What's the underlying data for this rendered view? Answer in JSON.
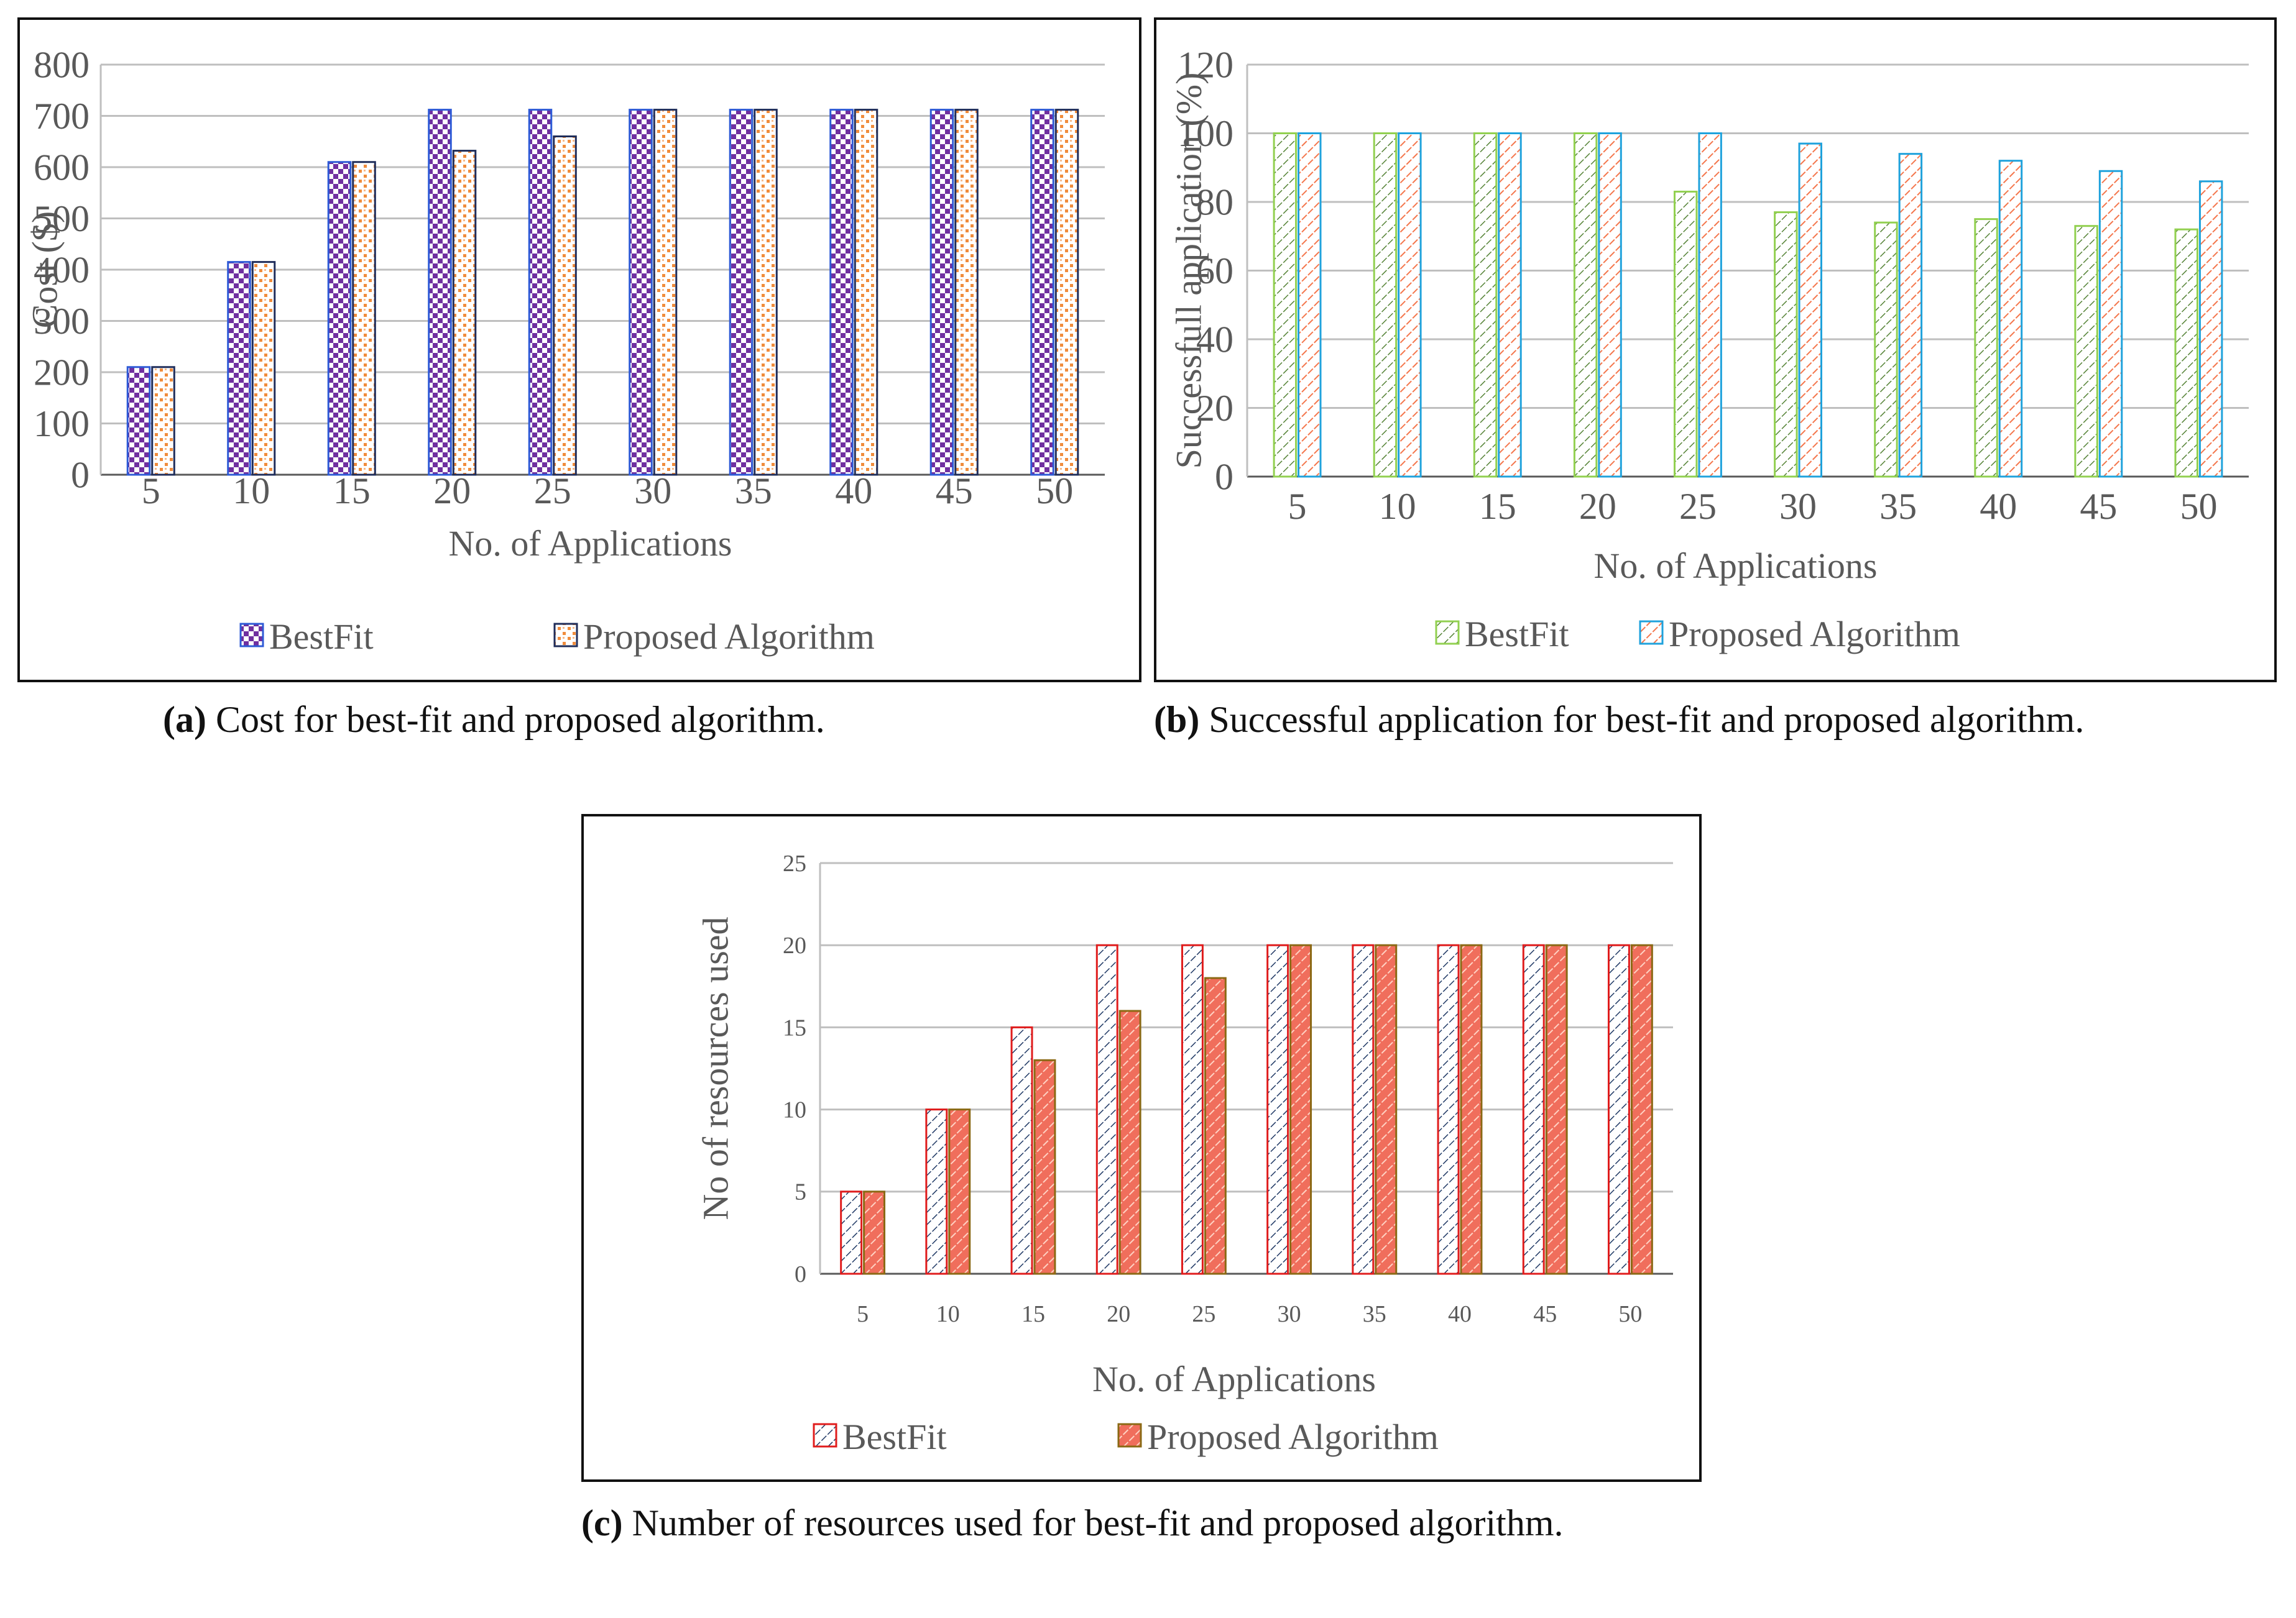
{
  "colors": {
    "grid": "#bfbfbf",
    "axis": "#595959",
    "text": "#595959",
    "a_bestfit_pattern": "#7030a0",
    "a_bestfit_bg": "#ffffff",
    "a_bestfit_border": "#2e5ad6",
    "a_proposed_pattern": "#f08c3c",
    "a_proposed_bg": "#ffffff",
    "a_proposed_border": "#1f2d5a",
    "b_bestfit_pattern": "#548235",
    "b_bestfit_bg": "#ffffff",
    "b_bestfit_border": "#92d050",
    "b_proposed_pattern": "#f4764c",
    "b_proposed_bg": "#ffffff",
    "b_proposed_border": "#1fa2dc",
    "c_bestfit_pattern": "#1f3864",
    "c_bestfit_bg": "#ffffff",
    "c_bestfit_border": "#e01c1c",
    "c_proposed_pattern": "#ffd2c3",
    "c_proposed_bg": "#f06e5c",
    "c_proposed_border": "#8b6914"
  },
  "chart_data": [
    {
      "id": "a",
      "type": "bar",
      "categories": [
        "5",
        "10",
        "15",
        "20",
        "25",
        "30",
        "35",
        "40",
        "45",
        "50"
      ],
      "series": [
        {
          "name": "BestFit",
          "values": [
            210,
            415,
            610,
            712,
            712,
            712,
            712,
            712,
            712,
            712
          ]
        },
        {
          "name": "Proposed Algorithm",
          "values": [
            210,
            415,
            610,
            632,
            660,
            712,
            712,
            712,
            712,
            712
          ]
        }
      ],
      "xlabel": "No. of Applications",
      "ylabel": "Cost ($)",
      "ylim": [
        0,
        800
      ],
      "yticks": [
        "0",
        "100",
        "200",
        "300",
        "400",
        "500",
        "600",
        "700",
        "800"
      ],
      "legend": "bottom",
      "grid": true
    },
    {
      "id": "b",
      "type": "bar",
      "categories": [
        "5",
        "10",
        "15",
        "20",
        "25",
        "30",
        "35",
        "40",
        "45",
        "50"
      ],
      "series": [
        {
          "name": "BestFit",
          "values": [
            100,
            100,
            100,
            100,
            83,
            77,
            74,
            75,
            73,
            72
          ]
        },
        {
          "name": "Proposed Algorithm",
          "values": [
            100,
            100,
            100,
            100,
            100,
            97,
            94,
            92,
            89,
            86
          ]
        }
      ],
      "xlabel": "No. of Applications",
      "ylabel": "Successfull application (%)",
      "ylim": [
        0,
        120
      ],
      "yticks": [
        "0",
        "20",
        "40",
        "60",
        "80",
        "100",
        "120"
      ],
      "legend": "bottom",
      "grid": true
    },
    {
      "id": "c",
      "type": "bar",
      "categories": [
        "5",
        "10",
        "15",
        "20",
        "25",
        "30",
        "35",
        "40",
        "45",
        "50"
      ],
      "series": [
        {
          "name": "BestFit",
          "values": [
            5,
            10,
            15,
            20,
            20,
            20,
            20,
            20,
            20,
            20
          ]
        },
        {
          "name": "Proposed Algorithm",
          "values": [
            5,
            10,
            13,
            16,
            18,
            20,
            20,
            20,
            20,
            20
          ]
        }
      ],
      "xlabel": "No. of Applications",
      "ylabel": "No of resources used",
      "ylim": [
        0,
        25
      ],
      "yticks": [
        "0",
        "5",
        "10",
        "15",
        "20",
        "25"
      ],
      "legend": "bottom",
      "grid": true
    }
  ],
  "captions": {
    "a": {
      "label": "(a)",
      "text": " Cost for best-fit and proposed algorithm."
    },
    "b": {
      "label": "(b)",
      "text": " Successful application for best-fit and proposed algorithm."
    },
    "c": {
      "label": "(c)",
      "text": " Number of resources used for best-fit and proposed algorithm."
    }
  }
}
